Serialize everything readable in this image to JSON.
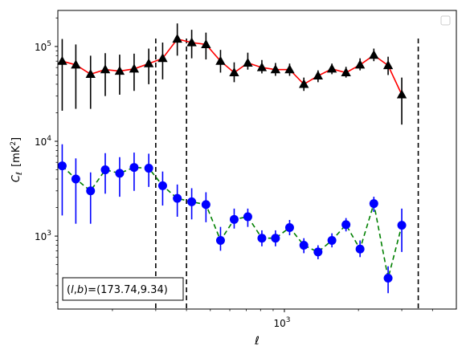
{
  "chart_data": {
    "type": "scatter",
    "xscale": "log",
    "yscale": "log",
    "xlim": [
      120,
      5000
    ],
    "ylim": [
      170,
      240000
    ],
    "xlabel": "ℓ",
    "ylabel_main": "C",
    "ylabel_sub": "ℓ",
    "ylabel_unit": "[mK",
    "ylabel_unit_sup": "2",
    "ylabel_unit_close": "]",
    "xticks": [
      {
        "value": 1000,
        "base": "10",
        "exp": "3"
      }
    ],
    "yticks": [
      {
        "value": 1000,
        "base": "10",
        "exp": "3"
      },
      {
        "value": 10000,
        "base": "10",
        "exp": "4"
      },
      {
        "value": 100000,
        "base": "10",
        "exp": "5"
      }
    ],
    "vlines": [
      300,
      400,
      3500
    ],
    "annotation": {
      "prefix": "(",
      "l": "l",
      "comma": ",",
      "b": "b",
      "suffix": ")=(173.74,9.34)"
    },
    "legend": "top-right",
    "grid": false,
    "series": [
      {
        "marker": "triangle",
        "marker_color": "#000000",
        "line_color": "#ff0000",
        "line_style": "solid",
        "points": [
          {
            "x": 125,
            "y": 70000,
            "lo": 21000,
            "hi": 120000
          },
          {
            "x": 142,
            "y": 64000,
            "lo": 22000,
            "hi": 105000
          },
          {
            "x": 163,
            "y": 51000,
            "lo": 22000,
            "hi": 80000
          },
          {
            "x": 187,
            "y": 57000,
            "lo": 30000,
            "hi": 85000
          },
          {
            "x": 214,
            "y": 55000,
            "lo": 31000,
            "hi": 82000
          },
          {
            "x": 245,
            "y": 58000,
            "lo": 34000,
            "hi": 84000
          },
          {
            "x": 281,
            "y": 66000,
            "lo": 40000,
            "hi": 95000
          },
          {
            "x": 320,
            "y": 75000,
            "lo": 45000,
            "hi": 110000
          },
          {
            "x": 367,
            "y": 120000,
            "lo": 80000,
            "hi": 175000
          },
          {
            "x": 420,
            "y": 110000,
            "lo": 75000,
            "hi": 150000
          },
          {
            "x": 480,
            "y": 105000,
            "lo": 73000,
            "hi": 140000
          },
          {
            "x": 550,
            "y": 70000,
            "lo": 53000,
            "hi": 92000
          },
          {
            "x": 625,
            "y": 53000,
            "lo": 42000,
            "hi": 68000
          },
          {
            "x": 710,
            "y": 67000,
            "lo": 57000,
            "hi": 86000
          },
          {
            "x": 810,
            "y": 60000,
            "lo": 52000,
            "hi": 72000
          },
          {
            "x": 920,
            "y": 57000,
            "lo": 49000,
            "hi": 67000
          },
          {
            "x": 1050,
            "y": 57000,
            "lo": 49000,
            "hi": 66000
          },
          {
            "x": 1200,
            "y": 40000,
            "lo": 34000,
            "hi": 47000
          },
          {
            "x": 1370,
            "y": 49000,
            "lo": 42000,
            "hi": 56000
          },
          {
            "x": 1560,
            "y": 58000,
            "lo": 51000,
            "hi": 66000
          },
          {
            "x": 1780,
            "y": 53000,
            "lo": 47000,
            "hi": 61000
          },
          {
            "x": 2030,
            "y": 64000,
            "lo": 56000,
            "hi": 75000
          },
          {
            "x": 2310,
            "y": 81000,
            "lo": 70000,
            "hi": 95000
          },
          {
            "x": 2640,
            "y": 63000,
            "lo": 50000,
            "hi": 78000
          },
          {
            "x": 3000,
            "y": 31000,
            "lo": 15000,
            "hi": 47000
          }
        ]
      },
      {
        "marker": "circle",
        "marker_color": "#0000ff",
        "line_color": "#008000",
        "line_style": "dashed",
        "points": [
          {
            "x": 125,
            "y": 5500,
            "lo": 1650,
            "hi": 9300
          },
          {
            "x": 142,
            "y": 4000,
            "lo": 1350,
            "hi": 6600
          },
          {
            "x": 163,
            "y": 3000,
            "lo": 1350,
            "hi": 4700
          },
          {
            "x": 187,
            "y": 5000,
            "lo": 2800,
            "hi": 7500
          },
          {
            "x": 214,
            "y": 4600,
            "lo": 2600,
            "hi": 6800
          },
          {
            "x": 245,
            "y": 5300,
            "lo": 3000,
            "hi": 7600
          },
          {
            "x": 281,
            "y": 5200,
            "lo": 3300,
            "hi": 7400
          },
          {
            "x": 320,
            "y": 3400,
            "lo": 2100,
            "hi": 4800
          },
          {
            "x": 367,
            "y": 2500,
            "lo": 1600,
            "hi": 3500
          },
          {
            "x": 420,
            "y": 2300,
            "lo": 1500,
            "hi": 3200
          },
          {
            "x": 480,
            "y": 2150,
            "lo": 1400,
            "hi": 2900
          },
          {
            "x": 550,
            "y": 900,
            "lo": 700,
            "hi": 1250
          },
          {
            "x": 625,
            "y": 1500,
            "lo": 1200,
            "hi": 1950
          },
          {
            "x": 710,
            "y": 1600,
            "lo": 1250,
            "hi": 1950
          },
          {
            "x": 810,
            "y": 950,
            "lo": 780,
            "hi": 1150
          },
          {
            "x": 920,
            "y": 950,
            "lo": 780,
            "hi": 1150
          },
          {
            "x": 1050,
            "y": 1230,
            "lo": 1020,
            "hi": 1480
          },
          {
            "x": 1200,
            "y": 800,
            "lo": 660,
            "hi": 950
          },
          {
            "x": 1370,
            "y": 680,
            "lo": 570,
            "hi": 800
          },
          {
            "x": 1560,
            "y": 900,
            "lo": 760,
            "hi": 1070
          },
          {
            "x": 1780,
            "y": 1320,
            "lo": 1120,
            "hi": 1550
          },
          {
            "x": 2030,
            "y": 730,
            "lo": 600,
            "hi": 900
          },
          {
            "x": 2310,
            "y": 2200,
            "lo": 1800,
            "hi": 2600
          },
          {
            "x": 2640,
            "y": 360,
            "lo": 250,
            "hi": 480
          },
          {
            "x": 3000,
            "y": 1300,
            "lo": 680,
            "hi": 1950
          }
        ]
      }
    ]
  }
}
